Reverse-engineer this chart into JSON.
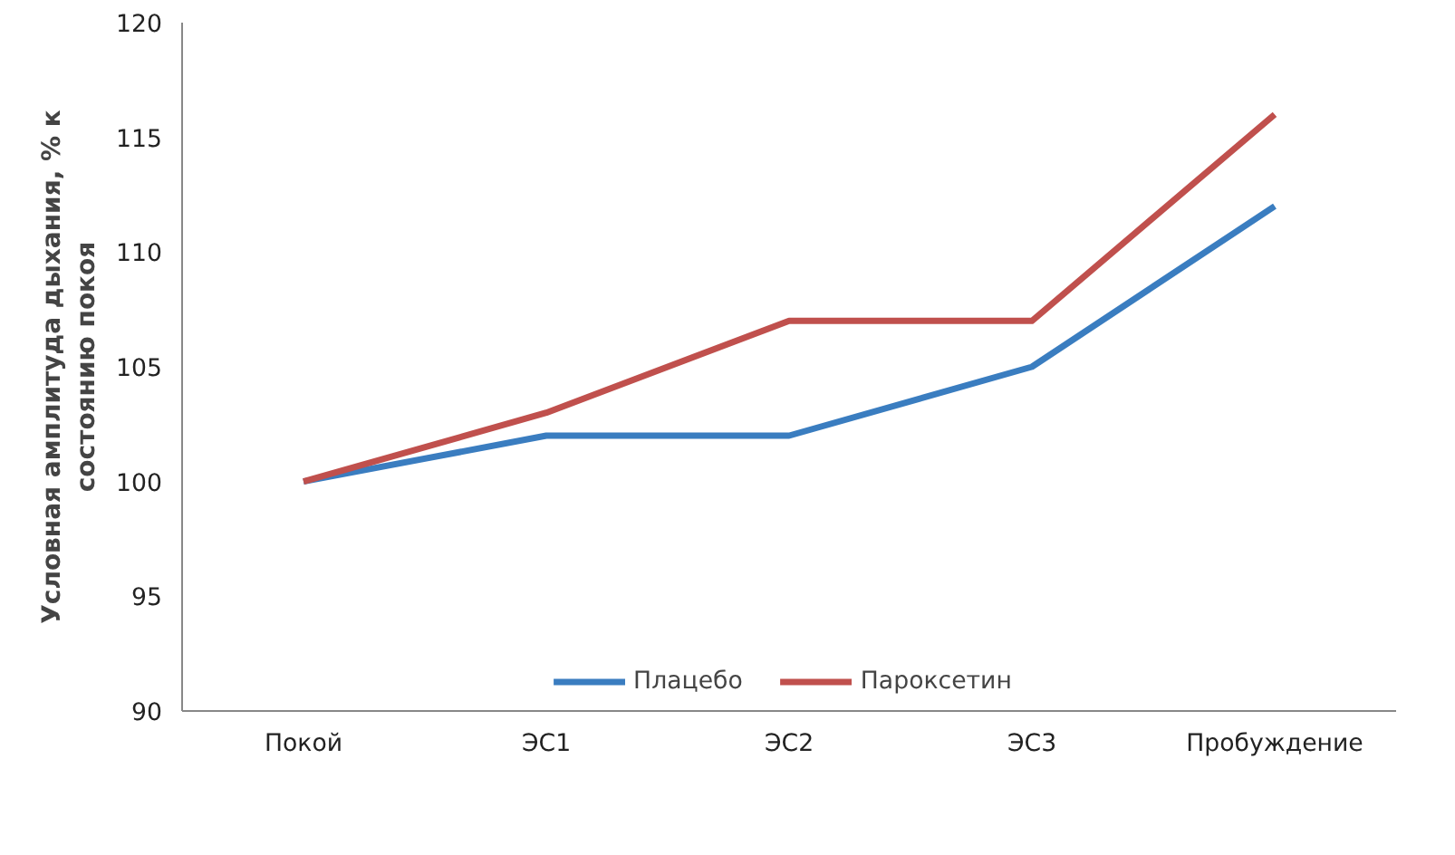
{
  "chart_data": {
    "type": "line",
    "ylabel": "Условная амплитуда дыхания, % к\nсостоянию покоя",
    "categories": [
      "Покой",
      "ЭС1",
      "ЭС2",
      "ЭС3",
      "Пробуждение"
    ],
    "series": [
      {
        "name": "Плацебо",
        "color": "#3a7dc0",
        "values": [
          100,
          102,
          102,
          105,
          112
        ]
      },
      {
        "name": "Пароксетин",
        "color": "#c0504d",
        "values": [
          100,
          103,
          107,
          107,
          116
        ]
      }
    ],
    "ylim": [
      90,
      120
    ],
    "yticks": [
      90,
      95,
      100,
      105,
      110,
      115,
      120
    ],
    "grid": false,
    "legend": "bottom",
    "marker": "none",
    "line_style": "solid"
  }
}
